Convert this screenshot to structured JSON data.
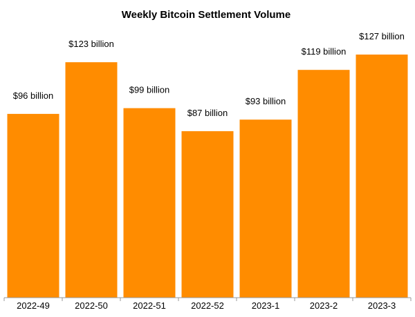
{
  "chart_data": {
    "type": "bar",
    "title": "Weekly Bitcoin Settlement Volume",
    "xlabel": "",
    "ylabel": "",
    "categories": [
      "2022-49",
      "2022-50",
      "2022-51",
      "2022-52",
      "2023-1",
      "2023-2",
      "2023-3"
    ],
    "values": [
      96,
      123,
      99,
      87,
      93,
      119,
      127
    ],
    "data_labels": [
      "$96 billion",
      "$123 billion",
      "$99 billion",
      "$87 billion",
      "$93 billion",
      "$119 billion",
      "$127 billion"
    ],
    "unit": "billion USD",
    "ylim": [
      0,
      127
    ],
    "grid": false,
    "legend": "none",
    "bar_color": "#FF8C00",
    "axis_color": "#999999"
  }
}
